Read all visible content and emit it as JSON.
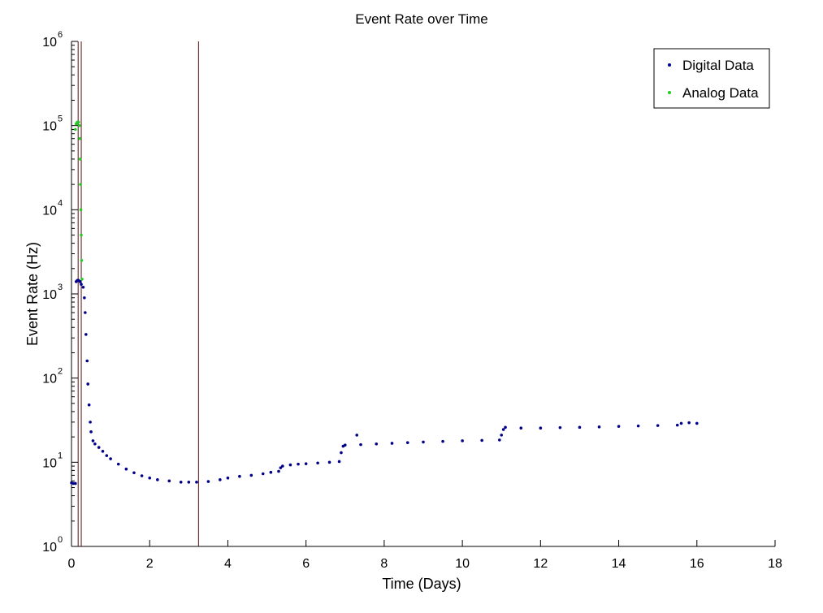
{
  "chart_data": {
    "type": "scatter",
    "title": "Event Rate over Time",
    "xlabel": "Time (Days)",
    "ylabel": "Event Rate (Hz)",
    "xlim": [
      0,
      18
    ],
    "ylim": [
      1,
      1000000
    ],
    "yscale": "log",
    "xticks": [
      "0",
      "2",
      "4",
      "6",
      "8",
      "10",
      "12",
      "14",
      "16",
      "18"
    ],
    "yticks": [
      {
        "base": "10",
        "exp": "0"
      },
      {
        "base": "10",
        "exp": "1"
      },
      {
        "base": "10",
        "exp": "2"
      },
      {
        "base": "10",
        "exp": "3"
      },
      {
        "base": "10",
        "exp": "4"
      },
      {
        "base": "10",
        "exp": "5"
      },
      {
        "base": "10",
        "exp": "6"
      }
    ],
    "legend_position": "top-right",
    "grid": false,
    "vertical_markers": [
      0.17,
      0.25,
      3.25
    ],
    "series": [
      {
        "name": "Digital Data",
        "color": "#00008b",
        "marker": "dot",
        "points": [
          [
            0.0,
            5.7
          ],
          [
            0.05,
            5.6
          ],
          [
            0.1,
            5.6
          ],
          [
            0.12,
            1400
          ],
          [
            0.15,
            1450
          ],
          [
            0.18,
            1450
          ],
          [
            0.22,
            1400
          ],
          [
            0.25,
            1300
          ],
          [
            0.3,
            1200
          ],
          [
            0.33,
            900
          ],
          [
            0.35,
            600
          ],
          [
            0.37,
            330
          ],
          [
            0.4,
            160
          ],
          [
            0.42,
            85
          ],
          [
            0.45,
            48
          ],
          [
            0.48,
            30
          ],
          [
            0.5,
            23
          ],
          [
            0.55,
            18
          ],
          [
            0.6,
            16.5
          ],
          [
            0.7,
            15
          ],
          [
            0.8,
            13.5
          ],
          [
            0.9,
            12
          ],
          [
            1.0,
            11
          ],
          [
            1.2,
            9.5
          ],
          [
            1.4,
            8.3
          ],
          [
            1.6,
            7.5
          ],
          [
            1.8,
            6.9
          ],
          [
            2.0,
            6.5
          ],
          [
            2.2,
            6.2
          ],
          [
            2.5,
            6.0
          ],
          [
            2.8,
            5.8
          ],
          [
            3.0,
            5.8
          ],
          [
            3.2,
            5.8
          ],
          [
            3.5,
            5.9
          ],
          [
            3.8,
            6.2
          ],
          [
            4.0,
            6.5
          ],
          [
            4.3,
            6.8
          ],
          [
            4.6,
            7.0
          ],
          [
            4.9,
            7.3
          ],
          [
            5.1,
            7.6
          ],
          [
            5.3,
            7.8
          ],
          [
            5.35,
            8.6
          ],
          [
            5.4,
            9.0
          ],
          [
            5.6,
            9.3
          ],
          [
            5.8,
            9.5
          ],
          [
            6.0,
            9.6
          ],
          [
            6.3,
            9.8
          ],
          [
            6.6,
            10.0
          ],
          [
            6.85,
            10.2
          ],
          [
            6.9,
            13
          ],
          [
            6.95,
            15.5
          ],
          [
            7.0,
            16
          ],
          [
            7.3,
            21
          ],
          [
            7.4,
            16.2
          ],
          [
            7.8,
            16.5
          ],
          [
            8.2,
            16.8
          ],
          [
            8.6,
            17.1
          ],
          [
            9.0,
            17.4
          ],
          [
            9.5,
            17.7
          ],
          [
            10.0,
            18.0
          ],
          [
            10.5,
            18.2
          ],
          [
            10.95,
            18.4
          ],
          [
            11.0,
            21
          ],
          [
            11.05,
            24.5
          ],
          [
            11.1,
            26
          ],
          [
            11.5,
            25.5
          ],
          [
            12.0,
            25.5
          ],
          [
            12.5,
            25.8
          ],
          [
            13.0,
            26.0
          ],
          [
            13.5,
            26.3
          ],
          [
            14.0,
            26.7
          ],
          [
            14.5,
            27.0
          ],
          [
            15.0,
            27.3
          ],
          [
            15.5,
            27.6
          ],
          [
            15.6,
            29
          ],
          [
            15.8,
            29.5
          ],
          [
            16.0,
            29
          ]
        ]
      },
      {
        "name": "Analog Data",
        "color": "#22cc22",
        "marker": "dot",
        "points": [
          [
            0.1,
            90000
          ],
          [
            0.12,
            105000
          ],
          [
            0.15,
            110000
          ],
          [
            0.18,
            110000
          ],
          [
            0.2,
            100000
          ],
          [
            0.21,
            70000
          ],
          [
            0.22,
            40000
          ],
          [
            0.23,
            20000
          ],
          [
            0.24,
            10000
          ],
          [
            0.25,
            5000
          ],
          [
            0.26,
            2500
          ],
          [
            0.27,
            1500
          ]
        ]
      }
    ]
  }
}
